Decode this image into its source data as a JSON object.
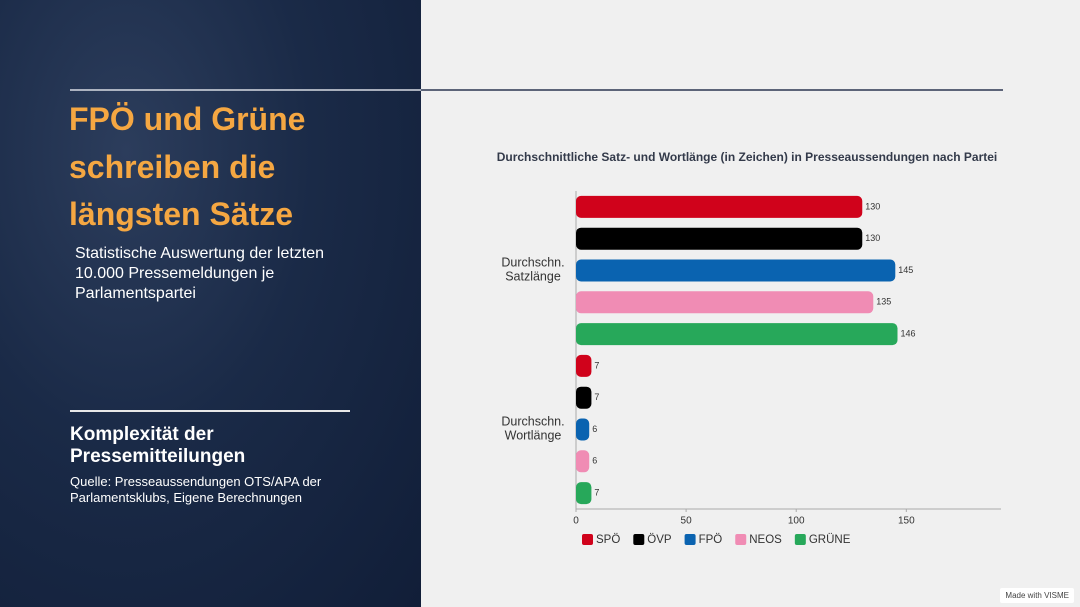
{
  "slide": {
    "title": "FPÖ und Grüne schreiben die längsten Sätze",
    "subtitle": "Statistische Auswertung der letzten 10.000 Pressemeldungen je Parlamentspartei",
    "heading": "Komplexität der Pressemitteilungen",
    "source": "Quelle: Presseaussendungen OTS/APA der Parlamentsklubs, Eigene Berechnungen"
  },
  "chart_data": {
    "type": "hbar",
    "orientation": "horizontal",
    "title": "Durchschnittliche Satz- und Wortlänge (in Zeichen) in Presseaussendungen nach Partei",
    "categories": [
      "Durchschn. Satzlänge",
      "Durchschn. Wortlänge"
    ],
    "series": [
      {
        "name": "SPÖ",
        "color": "#d0021b",
        "values": [
          130,
          7
        ]
      },
      {
        "name": "ÖVP",
        "color": "#000000",
        "values": [
          130,
          7
        ]
      },
      {
        "name": "FPÖ",
        "color": "#0a63b0",
        "values": [
          145,
          6
        ]
      },
      {
        "name": "NEOS",
        "color": "#f08cb4",
        "values": [
          135,
          6
        ]
      },
      {
        "name": "GRÜNE",
        "color": "#27a85a",
        "values": [
          146,
          7
        ]
      }
    ],
    "xlim": [
      0,
      193
    ],
    "xticks": [
      0,
      50,
      100,
      150
    ],
    "grid": false,
    "legend": "bottom"
  },
  "badge": "Made with VISME"
}
